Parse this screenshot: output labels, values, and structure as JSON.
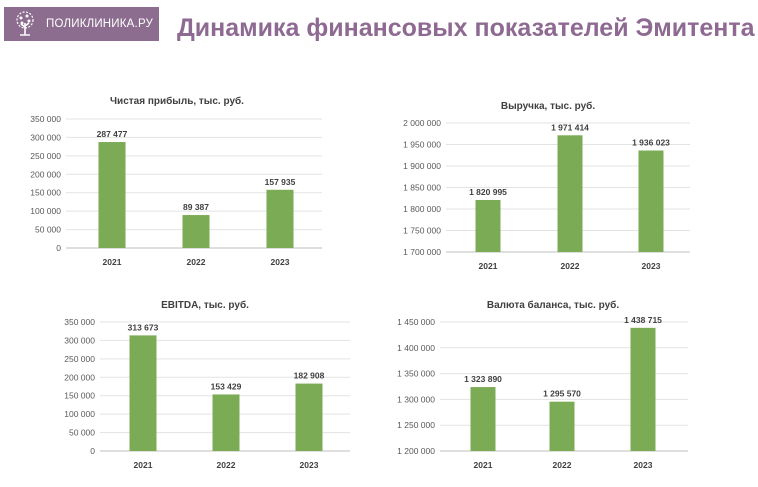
{
  "header": {
    "logo_text": "ПОЛИКЛИНИКА.РУ",
    "title": "Динамика финансовых показателей Эмитента"
  },
  "colors": {
    "bar": "#7cab55",
    "title": "#8e6a92",
    "logo_bg": "#8c6d8f"
  },
  "chart_data": [
    {
      "type": "bar",
      "title": "Чистая прибыль, тыс. руб.",
      "categories": [
        "2021",
        "2022",
        "2023"
      ],
      "values": [
        287477,
        89387,
        157935
      ],
      "data_labels": [
        "287 477",
        "89 387",
        "157 935"
      ],
      "ylim": [
        0,
        350000
      ],
      "yticks": [
        0,
        50000,
        100000,
        150000,
        200000,
        250000,
        300000,
        350000
      ],
      "ytick_labels": [
        "0",
        "50 000",
        "100 000",
        "150 000",
        "200 000",
        "250 000",
        "300 000",
        "350 000"
      ],
      "grid": true
    },
    {
      "type": "bar",
      "title": "Выручка, тыс. руб.",
      "categories": [
        "2021",
        "2022",
        "2023"
      ],
      "values": [
        1820995,
        1971414,
        1936023
      ],
      "data_labels": [
        "1 820 995",
        "1 971 414",
        "1 936 023"
      ],
      "ylim": [
        1700000,
        2000000
      ],
      "yticks": [
        1700000,
        1750000,
        1800000,
        1850000,
        1900000,
        1950000,
        2000000
      ],
      "ytick_labels": [
        "1 700 000",
        "1 750 000",
        "1 800 000",
        "1 850 000",
        "1 900 000",
        "1 950 000",
        "2 000 000"
      ],
      "grid": true
    },
    {
      "type": "bar",
      "title": "EBITDA, тыс. руб.",
      "categories": [
        "2021",
        "2022",
        "2023"
      ],
      "values": [
        313673,
        153429,
        182908
      ],
      "data_labels": [
        "313 673",
        "153 429",
        "182 908"
      ],
      "ylim": [
        0,
        350000
      ],
      "yticks": [
        0,
        50000,
        100000,
        150000,
        200000,
        250000,
        300000,
        350000
      ],
      "ytick_labels": [
        "0",
        "50 000",
        "100 000",
        "150 000",
        "200 000",
        "250 000",
        "300 000",
        "350 000"
      ],
      "grid": true
    },
    {
      "type": "bar",
      "title": "Валюта баланса, тыс. руб.",
      "categories": [
        "2021",
        "2022",
        "2023"
      ],
      "values": [
        1323890,
        1295570,
        1438715
      ],
      "data_labels": [
        "1 323 890",
        "1 295 570",
        "1 438 715"
      ],
      "ylim": [
        1200000,
        1450000
      ],
      "yticks": [
        1200000,
        1250000,
        1300000,
        1350000,
        1400000,
        1450000
      ],
      "ytick_labels": [
        "1 200 000",
        "1 250 000",
        "1 300 000",
        "1 350 000",
        "1 400 000",
        "1 450 000"
      ],
      "grid": true
    }
  ]
}
